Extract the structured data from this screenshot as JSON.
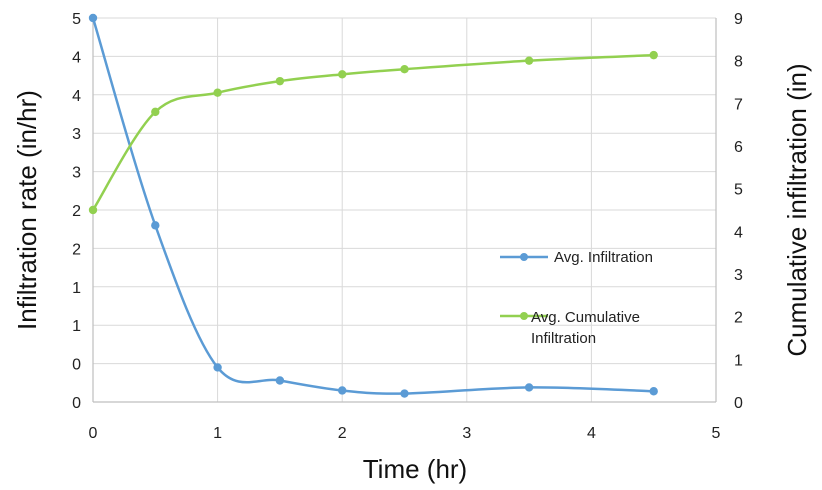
{
  "chart_data": {
    "type": "line",
    "title": "",
    "xlabel": "Time (hr)",
    "ylabel_left": "Infiltration rate (in/hr)",
    "ylabel_right": "Cumulative infiltration (in)",
    "x_ticks": [
      "0",
      "1",
      "2",
      "3",
      "4",
      "5"
    ],
    "y_left_ticks": [
      "0",
      "0",
      "1",
      "1",
      "2",
      "2",
      "3",
      "3",
      "4",
      "4",
      "5"
    ],
    "y_right_ticks": [
      "0",
      "1",
      "2",
      "3",
      "4",
      "5",
      "6",
      "7",
      "8",
      "9"
    ],
    "xlim": [
      0,
      5
    ],
    "ylim_left": [
      0,
      5
    ],
    "ylim_right": [
      0,
      9
    ],
    "grid": true,
    "legend_position": "center-right",
    "series": [
      {
        "name": "Avg. Infiltration",
        "axis": "left",
        "color": "#5b9bd5",
        "x": [
          0,
          0.5,
          1,
          1.5,
          2,
          2.5,
          3.5,
          4.5
        ],
        "y": [
          5.0,
          2.3,
          0.45,
          0.28,
          0.15,
          0.11,
          0.19,
          0.14
        ]
      },
      {
        "name": "Avg. Cumulative Infiltration",
        "legend_lines": [
          "Avg.  Cumulative",
          "Infiltration"
        ],
        "axis": "right",
        "color": "#92d050",
        "x": [
          0,
          0.5,
          1,
          1.5,
          2,
          2.5,
          3.5,
          4.5
        ],
        "y": [
          4.5,
          6.8,
          7.25,
          7.52,
          7.68,
          7.8,
          8.0,
          8.13
        ]
      }
    ]
  }
}
